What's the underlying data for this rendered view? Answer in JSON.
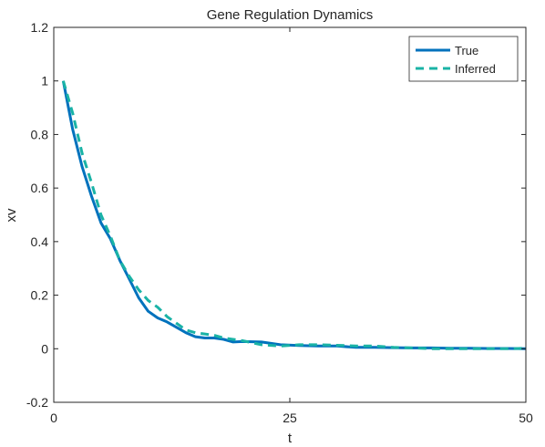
{
  "chart_data": {
    "type": "line",
    "title": "Gene Regulation Dynamics",
    "xlabel": "t",
    "ylabel": "xv",
    "xlim": [
      0,
      50
    ],
    "ylim": [
      -0.2,
      1.2
    ],
    "xticks": [
      0,
      25,
      50
    ],
    "xtick_labels": [
      "0",
      "25",
      "50"
    ],
    "yticks": [
      -0.2,
      0,
      0.2,
      0.4,
      0.6,
      0.8,
      1,
      1.2
    ],
    "ytick_labels": [
      "-0.2",
      "0",
      "0.2",
      "0.4",
      "0.6",
      "0.8",
      "1",
      "1.2"
    ],
    "grid": false,
    "legend_position": "top-right",
    "series": [
      {
        "name": "True",
        "color": "#0072BD",
        "style": "solid",
        "x": [
          1,
          2,
          3,
          4,
          5,
          6,
          7,
          8,
          9,
          10,
          11,
          12,
          13,
          14,
          15,
          16,
          17,
          18,
          19,
          20,
          22,
          24,
          26,
          28,
          30,
          32,
          34,
          36,
          38,
          40,
          42,
          44,
          46,
          48,
          50
        ],
        "y": [
          1.0,
          0.82,
          0.68,
          0.57,
          0.47,
          0.41,
          0.33,
          0.26,
          0.19,
          0.14,
          0.115,
          0.1,
          0.08,
          0.06,
          0.045,
          0.04,
          0.04,
          0.035,
          0.025,
          0.027,
          0.025,
          0.015,
          0.012,
          0.01,
          0.01,
          0.005,
          0.005,
          0.004,
          0.003,
          0.003,
          0.002,
          0.002,
          0.001,
          0.001,
          0.0
        ]
      },
      {
        "name": "Inferred",
        "color": "#1AB3A6",
        "style": "dashed",
        "x": [
          1,
          2,
          3,
          4,
          5,
          6,
          7,
          8,
          9,
          10,
          11,
          12,
          13,
          14,
          15,
          16,
          17,
          18,
          19,
          20,
          22,
          24,
          26,
          28,
          30,
          32,
          34,
          36,
          38,
          40,
          42,
          44,
          46,
          48,
          50
        ],
        "y": [
          1.0,
          0.88,
          0.73,
          0.62,
          0.5,
          0.42,
          0.33,
          0.27,
          0.22,
          0.18,
          0.155,
          0.12,
          0.095,
          0.07,
          0.06,
          0.055,
          0.05,
          0.04,
          0.035,
          0.03,
          0.015,
          0.01,
          0.015,
          0.015,
          0.013,
          0.01,
          0.01,
          0.005,
          0.003,
          0.0,
          0.0,
          0.0,
          0.0,
          0.0,
          0.002
        ]
      }
    ]
  }
}
